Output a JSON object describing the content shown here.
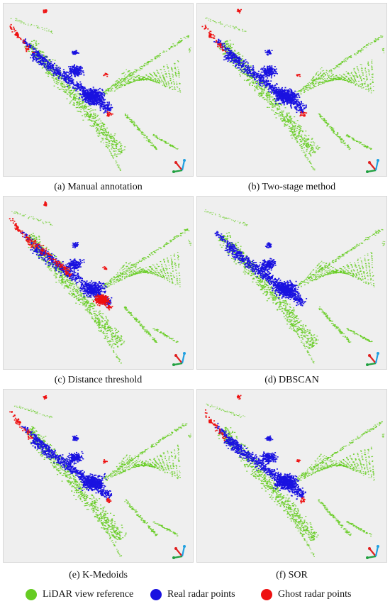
{
  "panels": [
    {
      "id": "a",
      "caption": "(a) Manual annotation",
      "ghost_level": "medium"
    },
    {
      "id": "b",
      "caption": "(b) Two-stage method",
      "ghost_level": "medium"
    },
    {
      "id": "c",
      "caption": "(c) Distance threshold",
      "ghost_level": "high"
    },
    {
      "id": "d",
      "caption": "(d) DBSCAN",
      "ghost_level": "none"
    },
    {
      "id": "e",
      "caption": "(e) K-Medoids",
      "ghost_level": "medium"
    },
    {
      "id": "f",
      "caption": "(f) SOR",
      "ghost_level": "medium"
    }
  ],
  "legend": [
    {
      "label": "LiDAR view reference",
      "color": "#66cc22"
    },
    {
      "label": "Real radar points",
      "color": "#1a12e0"
    },
    {
      "label": "Ghost radar points",
      "color": "#ee1111"
    }
  ],
  "colors": {
    "lidar": "#66cc22",
    "real": "#1a12e0",
    "ghost": "#ee1111",
    "panel_bg": "#efefef",
    "axis_x": "#e02020",
    "axis_y": "#20a040",
    "axis_z": "#20a0e0"
  },
  "icons": [
    "axis-triad-icon"
  ]
}
